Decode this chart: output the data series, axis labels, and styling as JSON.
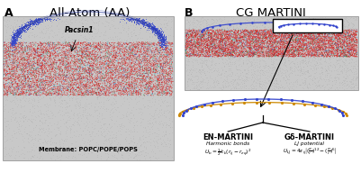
{
  "figsize": [
    4.01,
    1.92
  ],
  "dpi": 100,
  "fig_bg": "#ffffff",
  "panel_A": {
    "label": "A",
    "title": "All-Atom (AA)",
    "membrane_label": "Membrane: POPC/POPE/POPS",
    "pacsin_label": "Pacsin1"
  },
  "panel_B": {
    "label": "B",
    "title": "CG MARTINI",
    "en_label": "EN-MARTINI",
    "go_label": "Gδ-MARTINI",
    "harmonic_label": "Harmonic bonds",
    "harmonic_eq": "U_b = ½ k_b (r_ij - r_eq)²",
    "lj_label": "LJ potential",
    "lj_eq": "U_LJ = 4ε_ij[(σ/r)¹² - (σ/r)⁶]"
  },
  "colors": {
    "water_bg": "#c8c8c8",
    "water_dots": "#aaaaaa",
    "membrane_red": "#cc2020",
    "membrane_cyan": "#22aaaa",
    "membrane_blue": "#2255cc",
    "protein_blue": "#3344cc",
    "protein_orange": "#cc8800",
    "box_edge": "#000000",
    "arrow": "#000000"
  }
}
